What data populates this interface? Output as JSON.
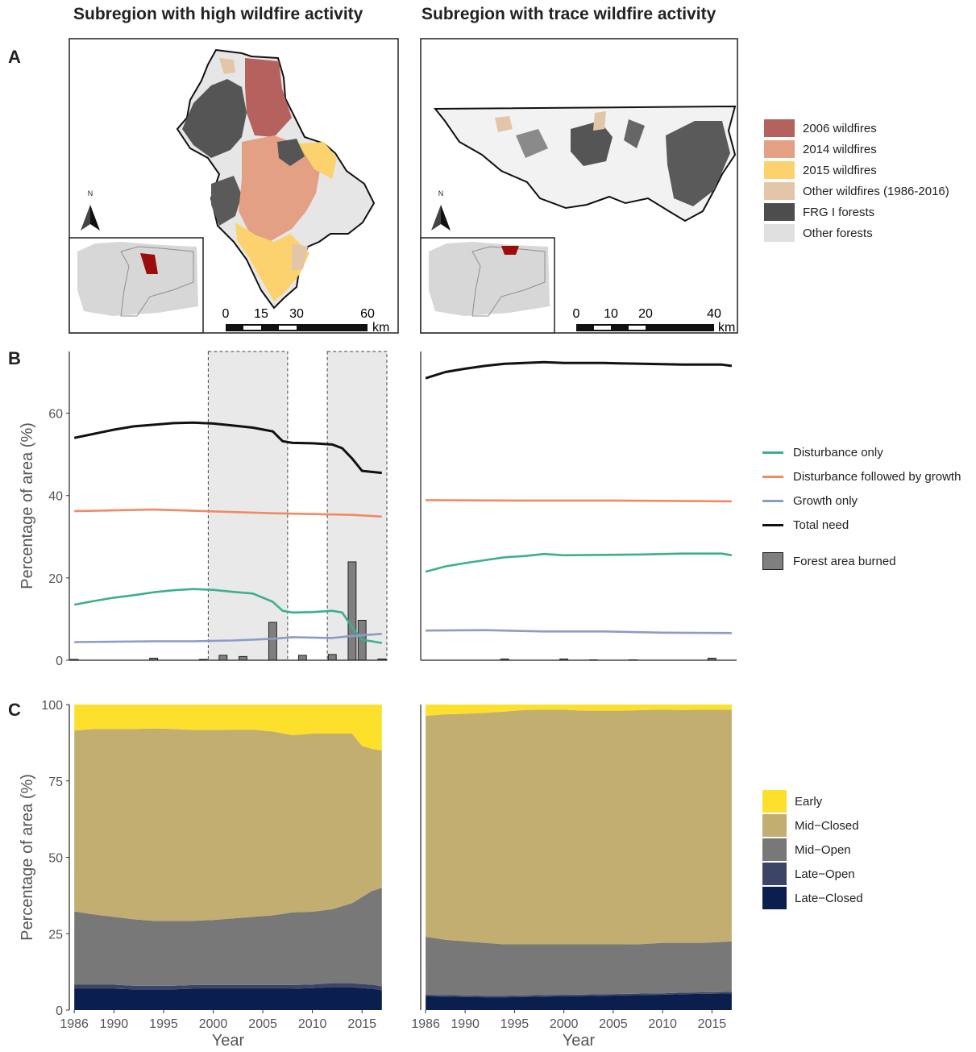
{
  "titles": {
    "left": "Subregion with high wildfire activity",
    "right": "Subregion with trace wildfire activity"
  },
  "panels": {
    "a": "A",
    "b": "B",
    "c": "C"
  },
  "map": {
    "north_label": "N",
    "scale_left": {
      "ticks": [
        "0",
        "15",
        "30",
        "60"
      ],
      "unit": "km"
    },
    "scale_right": {
      "ticks": [
        "0",
        "10",
        "20",
        "40"
      ],
      "unit": "km"
    },
    "legend": [
      {
        "label": "2006 wildfires",
        "color": "#b5625f"
      },
      {
        "label": "2014 wildfires",
        "color": "#e4a085"
      },
      {
        "label": "2015 wildfires",
        "color": "#fcd26e"
      },
      {
        "label": "Other wildfires (1986-2016)",
        "color": "#e3c6a8"
      },
      {
        "label": "FRG I forests",
        "color": "#4d4d4d"
      },
      {
        "label": "Other forests",
        "color": "#e0e0e0"
      }
    ]
  },
  "legend_b": {
    "lines": [
      {
        "label": "Disturbance only",
        "color": "#3dae91"
      },
      {
        "label": "Disturbance followed by growth",
        "color": "#f08a64"
      },
      {
        "label": "Growth only",
        "color": "#8c9cc8"
      },
      {
        "label": "Total need",
        "color": "#111111"
      }
    ],
    "bar": {
      "label": "Forest area burned",
      "color": "#7f7f7f"
    }
  },
  "legend_c": [
    {
      "label": "Early",
      "color": "#fde02c"
    },
    {
      "label": "Mid−Closed",
      "color": "#c3ae72"
    },
    {
      "label": "Mid−Open",
      "color": "#787878"
    },
    {
      "label": "Late−Open",
      "color": "#3c4566"
    },
    {
      "label": "Late−Closed",
      "color": "#0a1f4e"
    }
  ],
  "chart_data": [
    {
      "id": "b-left",
      "type": "line",
      "ylabel": "Percentage of area (%)",
      "ylim": [
        0,
        75
      ],
      "yticks": [
        0,
        20,
        40,
        60
      ],
      "xlim": [
        1985.5,
        2017.5
      ],
      "shaded_periods": [
        [
          1999.5,
          2007.5
        ],
        [
          2011.5,
          2017.5
        ]
      ],
      "series": [
        {
          "name": "Total need",
          "color": "#111111",
          "x": [
            1986,
            1988,
            1990,
            1992,
            1994,
            1996,
            1998,
            2000,
            2002,
            2004,
            2006,
            2007,
            2008,
            2010,
            2012,
            2013,
            2014,
            2015,
            2017
          ],
          "y": [
            54,
            55,
            56,
            56.8,
            57.2,
            57.6,
            57.7,
            57.5,
            57,
            56.5,
            55.6,
            53.2,
            52.8,
            52.7,
            52.4,
            51.5,
            49,
            46,
            45.5
          ]
        },
        {
          "name": "Disturbance followed by growth",
          "color": "#f08a64",
          "x": [
            1986,
            1990,
            1994,
            1998,
            2002,
            2006,
            2010,
            2014,
            2017
          ],
          "y": [
            36.2,
            36.4,
            36.6,
            36.3,
            36,
            35.7,
            35.5,
            35.3,
            34.9
          ]
        },
        {
          "name": "Disturbance only",
          "color": "#3dae91",
          "x": [
            1986,
            1988,
            1990,
            1992,
            1994,
            1996,
            1998,
            2000,
            2002,
            2004,
            2006,
            2007,
            2008,
            2010,
            2012,
            2013,
            2014,
            2015,
            2017
          ],
          "y": [
            13.5,
            14.4,
            15.2,
            15.8,
            16.5,
            17,
            17.3,
            17.1,
            16.6,
            16.2,
            14.2,
            12,
            11.6,
            11.7,
            12,
            11.6,
            8,
            5,
            4.2
          ]
        },
        {
          "name": "Growth only",
          "color": "#8c9cc8",
          "x": [
            1986,
            1990,
            1994,
            1998,
            2002,
            2006,
            2008,
            2010,
            2012,
            2014,
            2017
          ],
          "y": [
            4.4,
            4.5,
            4.6,
            4.6,
            4.8,
            5.2,
            5.6,
            5.5,
            5.4,
            5.9,
            6.4
          ]
        }
      ],
      "bars": {
        "name": "Forest area burned",
        "color": "#7f7f7f",
        "x": [
          1986,
          1994,
          1999,
          2001,
          2003,
          2006,
          2009,
          2012,
          2014,
          2015,
          2017
        ],
        "y": [
          0.2,
          0.5,
          0.2,
          1.2,
          0.9,
          9.2,
          1.2,
          1.4,
          23.9,
          9.7,
          0.3
        ]
      }
    },
    {
      "id": "b-right",
      "type": "line",
      "ylim": [
        0,
        75
      ],
      "xlim": [
        1985.5,
        2017.5
      ],
      "series": [
        {
          "name": "Total need",
          "color": "#111111",
          "x": [
            1986,
            1988,
            1990,
            1992,
            1994,
            1996,
            1998,
            2000,
            2004,
            2008,
            2012,
            2016,
            2017
          ],
          "y": [
            68.5,
            70,
            70.8,
            71.5,
            72,
            72.2,
            72.4,
            72.2,
            72.2,
            72,
            71.8,
            71.8,
            71.5
          ]
        },
        {
          "name": "Disturbance followed by growth",
          "color": "#f08a64",
          "x": [
            1986,
            1995,
            2005,
            2017
          ],
          "y": [
            38.9,
            38.8,
            38.8,
            38.6
          ]
        },
        {
          "name": "Disturbance only",
          "color": "#3dae91",
          "x": [
            1986,
            1988,
            1990,
            1992,
            1994,
            1996,
            1998,
            2000,
            2004,
            2008,
            2012,
            2016,
            2017
          ],
          "y": [
            21.5,
            22.8,
            23.6,
            24.3,
            25,
            25.3,
            25.8,
            25.5,
            25.6,
            25.7,
            25.9,
            25.9,
            25.5
          ]
        },
        {
          "name": "Growth only",
          "color": "#8c9cc8",
          "x": [
            1986,
            1992,
            1998,
            2004,
            2010,
            2017
          ],
          "y": [
            7.2,
            7.3,
            7,
            7,
            6.7,
            6.6
          ]
        }
      ],
      "bars": {
        "name": "Forest area burned",
        "color": "#7f7f7f",
        "x": [
          1994,
          2000,
          2003,
          2007,
          2015
        ],
        "y": [
          0.3,
          0.3,
          0.1,
          0.1,
          0.5
        ]
      }
    },
    {
      "id": "c-left",
      "type": "area",
      "xlabel": "Year",
      "ylabel": "Percentage of area (%)",
      "ylim": [
        0,
        100
      ],
      "yticks": [
        0,
        25,
        50,
        75,
        100
      ],
      "xlim": [
        1985.5,
        2017.5
      ],
      "xticks": [
        1986,
        1990,
        1995,
        2000,
        2005,
        2010,
        2015
      ],
      "x": [
        1986,
        1988,
        1990,
        1992,
        1994,
        1996,
        1998,
        2000,
        2002,
        2004,
        2006,
        2008,
        2010,
        2012,
        2014,
        2015,
        2016,
        2017
      ],
      "series": [
        {
          "name": "Late−Closed",
          "color": "#0a1f4e",
          "values": [
            7,
            7,
            7,
            6.8,
            6.8,
            6.8,
            7,
            7,
            7,
            7,
            7,
            7,
            7.2,
            7.5,
            7.5,
            7.2,
            7,
            6.5
          ]
        },
        {
          "name": "Late−Open",
          "color": "#3c4566",
          "values": [
            1.3,
            1.3,
            1.3,
            1.2,
            1.2,
            1.2,
            1.2,
            1.2,
            1.2,
            1.2,
            1.2,
            1.2,
            1.2,
            1.3,
            1.3,
            1.3,
            1.3,
            1.3
          ]
        },
        {
          "name": "Mid−Open",
          "color": "#787878",
          "values": [
            24,
            23,
            22.2,
            21.7,
            21.2,
            21.2,
            21,
            21.3,
            21.8,
            22.3,
            22.8,
            23.8,
            23.8,
            24.2,
            26.2,
            28.5,
            30.7,
            32.2
          ]
        },
        {
          "name": "Mid−Closed",
          "color": "#c3ae72",
          "values": [
            59.2,
            60.7,
            61.5,
            62.3,
            63,
            62.8,
            62.5,
            62.2,
            61.8,
            61.3,
            60.2,
            58,
            58.3,
            57.5,
            55.5,
            49.5,
            46.5,
            45
          ]
        },
        {
          "name": "Early",
          "color": "#fde02c",
          "values": [
            8.5,
            8,
            8,
            8,
            7.8,
            8,
            8.3,
            8.3,
            8.2,
            8.2,
            8.8,
            10,
            9.5,
            9.5,
            9.5,
            13.5,
            14.5,
            15
          ]
        }
      ]
    },
    {
      "id": "c-right",
      "type": "area",
      "xlabel": "Year",
      "ylim": [
        0,
        100
      ],
      "xlim": [
        1985.5,
        2017.5
      ],
      "xticks": [
        1986,
        1990,
        1995,
        2000,
        2005,
        2010,
        2015
      ],
      "x": [
        1986,
        1988,
        1990,
        1992,
        1994,
        1996,
        1998,
        2000,
        2002,
        2004,
        2006,
        2008,
        2010,
        2012,
        2014,
        2016,
        2017
      ],
      "series": [
        {
          "name": "Late−Closed",
          "color": "#0a1f4e",
          "values": [
            4.5,
            4.4,
            4.3,
            4.2,
            4.2,
            4.3,
            4.4,
            4.5,
            4.6,
            4.7,
            4.8,
            4.9,
            5,
            5.2,
            5.3,
            5.4,
            5.5
          ]
        },
        {
          "name": "Late−Open",
          "color": "#3c4566",
          "values": [
            0.5,
            0.5,
            0.5,
            0.5,
            0.5,
            0.5,
            0.5,
            0.5,
            0.5,
            0.5,
            0.5,
            0.5,
            0.5,
            0.5,
            0.5,
            0.5,
            0.5
          ]
        },
        {
          "name": "Mid−Open",
          "color": "#787878",
          "values": [
            19,
            18.1,
            17.7,
            17.3,
            16.8,
            16.7,
            16.6,
            16.5,
            16.4,
            16.3,
            16.2,
            16.2,
            16.5,
            16.3,
            16.2,
            16.4,
            16.5
          ]
        },
        {
          "name": "Mid−Closed",
          "color": "#c3ae72",
          "values": [
            72.3,
            73.8,
            74.5,
            75.3,
            76.2,
            76.7,
            76.8,
            76.8,
            76.5,
            76.5,
            76.5,
            76.6,
            76.3,
            76.2,
            76.3,
            76,
            75.8
          ]
        },
        {
          "name": "Early",
          "color": "#fde02c",
          "values": [
            3.7,
            3.2,
            3,
            2.7,
            2.3,
            1.8,
            1.7,
            1.7,
            2,
            2,
            2,
            1.8,
            1.7,
            1.8,
            1.7,
            1.7,
            1.7
          ]
        }
      ]
    }
  ]
}
